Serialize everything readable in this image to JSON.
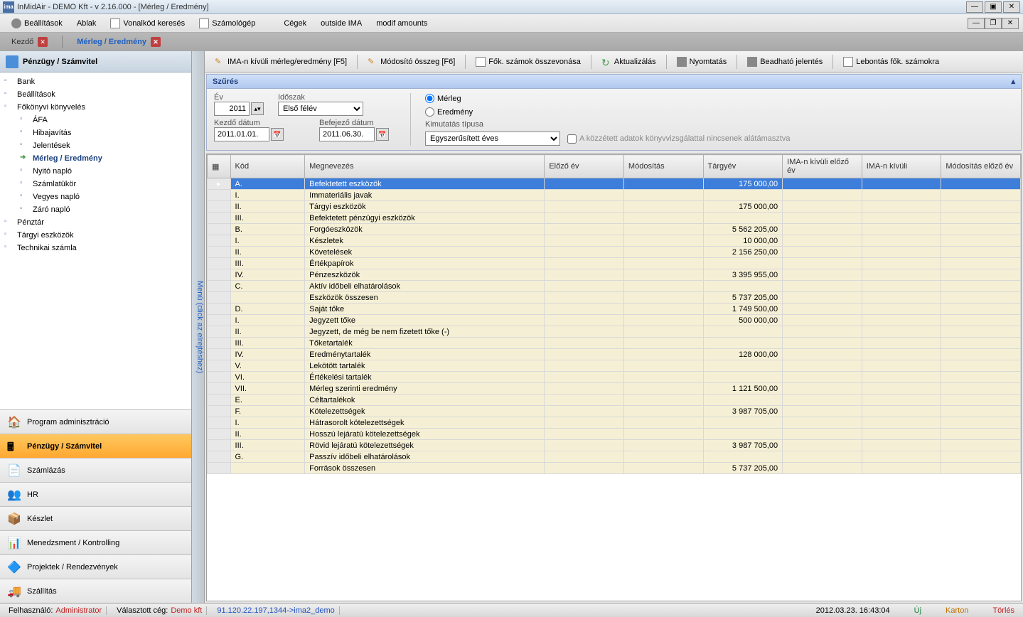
{
  "title": "InMidAir - DEMO Kft - v 2.16.000 - [Mérleg / Eredmény]",
  "menubar": {
    "items": [
      "Beállítások",
      "Ablak",
      "Vonalkód keresés",
      "Számológép",
      "Cégek",
      "outside IMA",
      "modif amounts"
    ]
  },
  "tabs": [
    {
      "label": "Kezdő",
      "active": false
    },
    {
      "label": "Mérleg / Eredmény",
      "active": true
    }
  ],
  "sidebar": {
    "header": "Pénzügy / Számvitel",
    "tree": [
      {
        "label": "Bank",
        "indent": 0
      },
      {
        "label": "Beállítások",
        "indent": 0
      },
      {
        "label": "Főkönyvi könyvelés",
        "indent": 0
      },
      {
        "label": "ÁFA",
        "indent": 1
      },
      {
        "label": "Hibajavítás",
        "indent": 1
      },
      {
        "label": "Jelentések",
        "indent": 1
      },
      {
        "label": "Mérleg / Eredmény",
        "indent": 1,
        "selected": true
      },
      {
        "label": "Nyitó napló",
        "indent": 1
      },
      {
        "label": "Számlatükör",
        "indent": 1
      },
      {
        "label": "Vegyes napló",
        "indent": 1
      },
      {
        "label": "Záró napló",
        "indent": 1
      },
      {
        "label": "Pénztár",
        "indent": 0
      },
      {
        "label": "Tárgyi eszközök",
        "indent": 0
      },
      {
        "label": "Technikai számla",
        "indent": 0
      }
    ],
    "modules": [
      {
        "label": "Program adminisztráció"
      },
      {
        "label": "Pénzügy / Számvitel",
        "active": true
      },
      {
        "label": "Számlázás"
      },
      {
        "label": "HR"
      },
      {
        "label": "Készlet"
      },
      {
        "label": "Menedzsment / Kontrolling"
      },
      {
        "label": "Projektek / Rendezvények"
      },
      {
        "label": "Szállítás"
      }
    ]
  },
  "splitter": "Menü (click az elrejtéshez)",
  "toolbar": [
    "IMA-n kívüli mérleg/eredmény [F5]",
    "Módosító összeg [F6]",
    "Fők. számok összevonása",
    "Aktualizálás",
    "Nyomtatás",
    "Beadható jelentés",
    "Lebontás fők. számokra"
  ],
  "filter": {
    "title": "Szűrés",
    "year_label": "Év",
    "year": "2011",
    "period_label": "Időszak",
    "period": "Első félév",
    "start_label": "Kezdő dátum",
    "start": "2011.01.01.",
    "end_label": "Befejező dátum",
    "end": "2011.06.30.",
    "radio_merleg": "Mérleg",
    "radio_eredmeny": "Eredmény",
    "type_label": "Kimutatás típusa",
    "type": "Egyszerűsített éves",
    "checkbox": "A közzétett adatok könyvvizsgálattal nincsenek alátámasztva"
  },
  "grid": {
    "columns": [
      "Kód",
      "Megnevezés",
      "Előző év",
      "Módosítás",
      "Tárgyév",
      "IMA-n kívüli előző év",
      "IMA-n kívüli",
      "Módosítás előző év"
    ],
    "rows": [
      {
        "kod": "A.",
        "name": "Befektetett eszközök",
        "targyev": "175 000,00",
        "highlight": true
      },
      {
        "kod": "I.",
        "name": "Immateriális javak",
        "targyev": ""
      },
      {
        "kod": "II.",
        "name": "Tárgyi eszközök",
        "targyev": "175 000,00"
      },
      {
        "kod": "III.",
        "name": "Befektetett pénzügyi eszközök",
        "targyev": ""
      },
      {
        "kod": "B.",
        "name": "Forgóeszközök",
        "targyev": "5 562 205,00"
      },
      {
        "kod": "I.",
        "name": "Készletek",
        "targyev": "10 000,00"
      },
      {
        "kod": "II.",
        "name": "Követelések",
        "targyev": "2 156 250,00"
      },
      {
        "kod": "III.",
        "name": "Értékpapírok",
        "targyev": ""
      },
      {
        "kod": "IV.",
        "name": "Pénzeszközök",
        "targyev": "3 395 955,00"
      },
      {
        "kod": "C.",
        "name": "Aktív időbeli elhatárolások",
        "targyev": ""
      },
      {
        "kod": "",
        "name": "Eszközök összesen",
        "targyev": "5 737 205,00"
      },
      {
        "kod": "D.",
        "name": "Saját tőke",
        "targyev": "1 749 500,00"
      },
      {
        "kod": "I.",
        "name": "Jegyzett tőke",
        "targyev": "500 000,00"
      },
      {
        "kod": "II.",
        "name": "Jegyzett, de még be nem fizetett tőke (-)",
        "targyev": ""
      },
      {
        "kod": "III.",
        "name": "Tőketartalék",
        "targyev": ""
      },
      {
        "kod": "IV.",
        "name": "Eredménytartalék",
        "targyev": "128 000,00"
      },
      {
        "kod": "V.",
        "name": "Lekötött tartalék",
        "targyev": ""
      },
      {
        "kod": "VI.",
        "name": "Értékelési tartalék",
        "targyev": ""
      },
      {
        "kod": "VII.",
        "name": "Mérleg szerinti eredmény",
        "targyev": "1 121 500,00"
      },
      {
        "kod": "E.",
        "name": "Céltartalékok",
        "targyev": ""
      },
      {
        "kod": "F.",
        "name": "Kötelezettségek",
        "targyev": "3 987 705,00"
      },
      {
        "kod": "I.",
        "name": "Hátrasorolt kötelezettségek",
        "targyev": ""
      },
      {
        "kod": "II.",
        "name": "Hosszú lejáratú kötelezettségek",
        "targyev": ""
      },
      {
        "kod": "III.",
        "name": "Rövid lejáratú kötelezettségek",
        "targyev": "3 987 705,00"
      },
      {
        "kod": "G.",
        "name": "Passzív időbeli elhatárolások",
        "targyev": ""
      },
      {
        "kod": "",
        "name": "Források összesen",
        "targyev": "5 737 205,00"
      }
    ]
  },
  "statusbar": {
    "user_label": "Felhasználó:",
    "user": "Administrator",
    "company_label": "Választott cég:",
    "company": "Demo kft",
    "conn": "91.120.22.197,1344->ima2_demo",
    "datetime": "2012.03.23. 16:43:04",
    "uj": "Új",
    "karton": "Karton",
    "torles": "Törlés"
  }
}
